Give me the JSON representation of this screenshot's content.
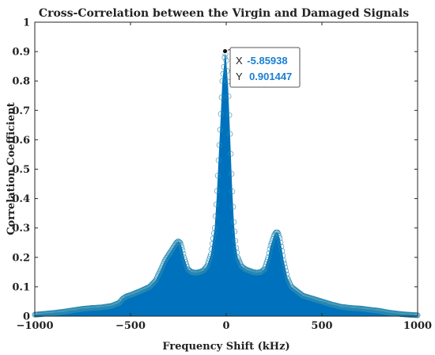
{
  "chart_data": {
    "type": "scatter",
    "title": "Cross-Correlation between the Virgin and Damaged Signals",
    "xlabel": "Frequency Shift (kHz)",
    "ylabel": "Correlation Coefficient",
    "xlim": [
      -1000,
      1000
    ],
    "ylim": [
      0,
      1
    ],
    "xticks": [
      "-1000",
      "-500",
      "0",
      "500",
      "1000"
    ],
    "yticks": [
      "0",
      "0.1",
      "0.2",
      "0.3",
      "0.4",
      "0.5",
      "0.6",
      "0.7",
      "0.8",
      "0.9",
      "1"
    ],
    "grid": false,
    "series_color": "#0072BD",
    "envelope": {
      "x": [
        -1000,
        -950,
        -900,
        -850,
        -800,
        -750,
        -700,
        -650,
        -600,
        -560,
        -540,
        -520,
        -500,
        -450,
        -400,
        -370,
        -340,
        -320,
        -300,
        -280,
        -260,
        -250,
        -240,
        -230,
        -220,
        -200,
        -180,
        -160,
        -140,
        -120,
        -100,
        -80,
        -60,
        -50,
        -40,
        -30,
        -20,
        -10,
        -5.86,
        0,
        10,
        20,
        30,
        40,
        50,
        60,
        80,
        100,
        120,
        140,
        160,
        180,
        200,
        220,
        230,
        240,
        250,
        260,
        270,
        280,
        290,
        300,
        320,
        340,
        370,
        400,
        450,
        500,
        550,
        600,
        650,
        700,
        750,
        800,
        850,
        900,
        950,
        1000
      ],
      "y": [
        0.005,
        0.008,
        0.011,
        0.015,
        0.02,
        0.025,
        0.028,
        0.03,
        0.035,
        0.045,
        0.06,
        0.068,
        0.072,
        0.085,
        0.1,
        0.12,
        0.16,
        0.19,
        0.21,
        0.23,
        0.25,
        0.255,
        0.25,
        0.23,
        0.2,
        0.16,
        0.15,
        0.148,
        0.15,
        0.155,
        0.17,
        0.21,
        0.3,
        0.4,
        0.53,
        0.66,
        0.8,
        0.86,
        0.901447,
        0.87,
        0.78,
        0.62,
        0.45,
        0.32,
        0.24,
        0.2,
        0.17,
        0.16,
        0.155,
        0.15,
        0.148,
        0.15,
        0.16,
        0.2,
        0.235,
        0.255,
        0.275,
        0.285,
        0.285,
        0.265,
        0.23,
        0.19,
        0.13,
        0.1,
        0.085,
        0.07,
        0.06,
        0.05,
        0.04,
        0.032,
        0.028,
        0.026,
        0.022,
        0.018,
        0.012,
        0.008,
        0.005,
        0.003
      ]
    },
    "datatip": {
      "x_label": "X",
      "x_value": "-5.85938",
      "y_label": "Y",
      "y_value": "0.901447",
      "x": -5.85938,
      "y": 0.901447
    }
  }
}
